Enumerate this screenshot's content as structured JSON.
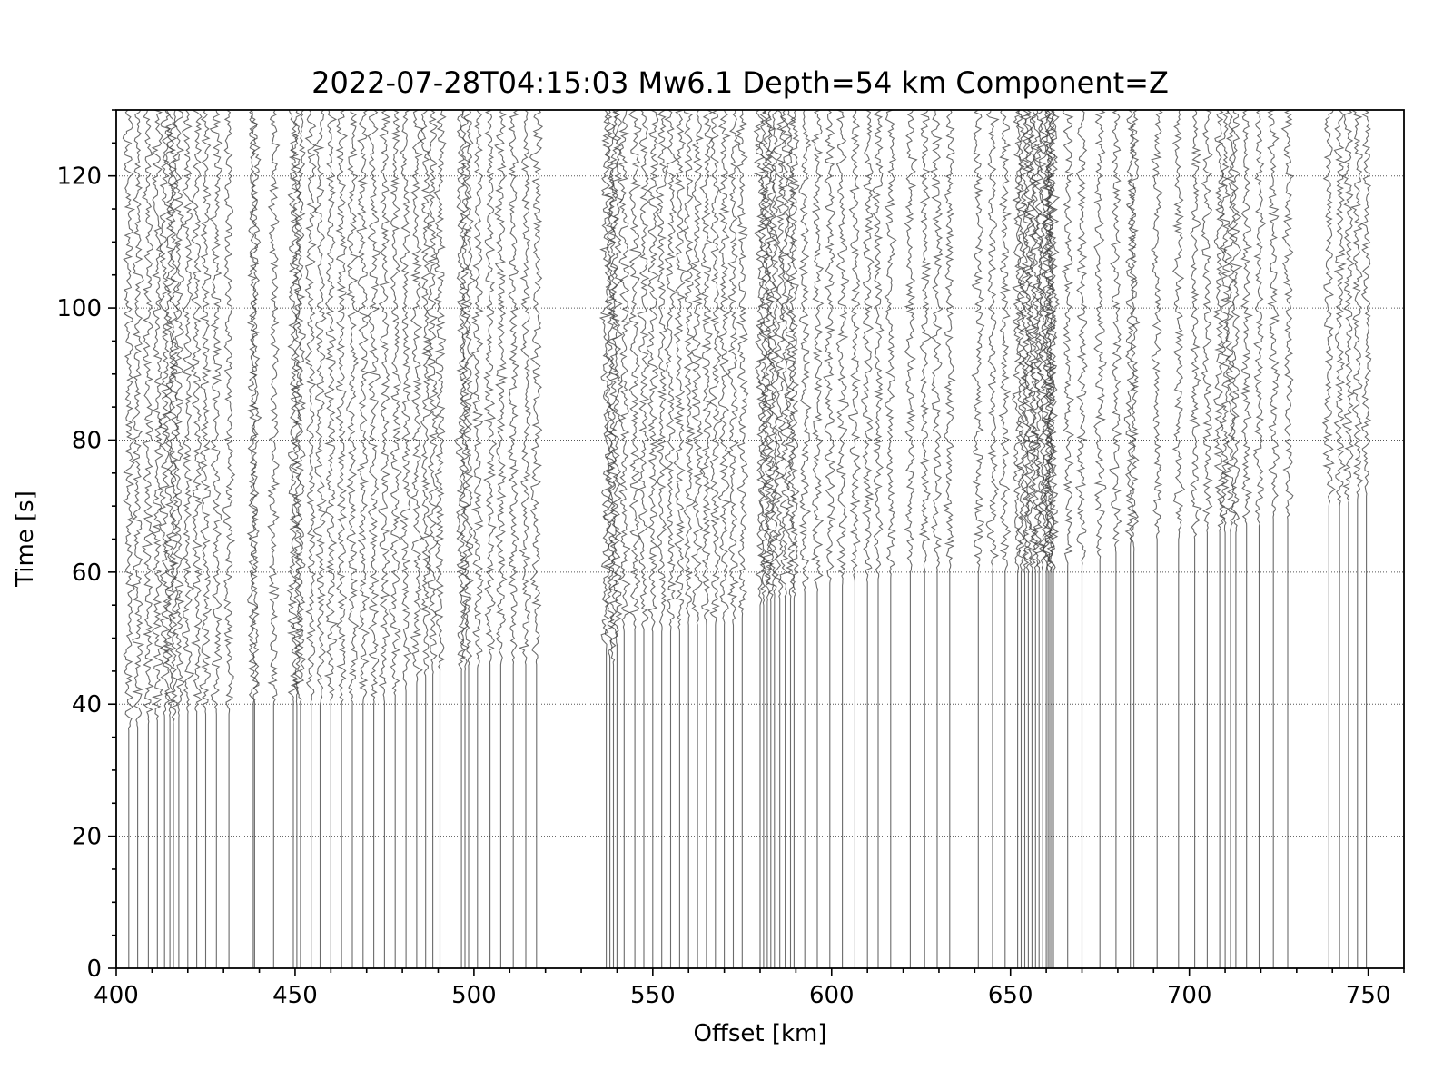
{
  "chart_data": {
    "type": "line",
    "title": "2022-07-28T04:15:03 Mw6.1 Depth=54 km Component=Z",
    "xlabel": "Offset [km]",
    "ylabel": "Time [s]",
    "xlim": [
      400,
      760
    ],
    "ylim": [
      0,
      130
    ],
    "xticks": [
      400,
      450,
      500,
      550,
      600,
      650,
      700,
      750
    ],
    "xtick_labels": [
      "400",
      "450",
      "500",
      "550",
      "600",
      "650",
      "700",
      "750"
    ],
    "yticks": [
      0,
      20,
      40,
      60,
      80,
      100,
      120
    ],
    "ytick_labels": [
      "0",
      "20",
      "40",
      "60",
      "80",
      "100",
      "120"
    ],
    "grid": "horizontal dotted at major y ticks",
    "colors": {
      "trace": "#3a3a3a",
      "grid": "#555555"
    },
    "series": [
      {
        "offsets": [
          403.5,
          406,
          409,
          411.5,
          413.5,
          415,
          416,
          417.5,
          420,
          422.5,
          425,
          428,
          431.5
        ],
        "onsets": [
          36,
          36.5,
          37,
          37.5,
          38,
          38,
          37,
          38,
          38.5,
          38.5,
          38.5,
          38.5,
          38.5
        ]
      },
      {
        "offsets": [
          438.3,
          438.7,
          444,
          449.5,
          450.5,
          451.5,
          454.5,
          457,
          460,
          463,
          466,
          469,
          472,
          475,
          478,
          481,
          484,
          486.5,
          488.5,
          490.5,
          496.5,
          497.5,
          498.5,
          501,
          504.5,
          507.5,
          511,
          514.5,
          517.5
        ],
        "onsets": [
          40,
          40,
          40,
          40,
          40,
          40,
          40,
          40,
          40,
          40,
          40,
          40,
          40,
          40,
          41,
          42,
          43,
          44,
          44.5,
          45,
          45,
          45,
          45.5,
          45.5,
          46,
          46,
          46,
          46,
          46
        ]
      },
      {
        "offsets": [
          537,
          538,
          539,
          540,
          542,
          545,
          547.5,
          550,
          552.5,
          555,
          557.5,
          560,
          562.5,
          565,
          567.5,
          570,
          572.5,
          575,
          580,
          581,
          582,
          583,
          584,
          585.5,
          587,
          588.5,
          589.5,
          592.5,
          596,
          599.5,
          603,
          606.5,
          610,
          613,
          616.5
        ],
        "onsets": [
          48,
          47,
          46,
          49,
          51,
          51,
          51,
          51,
          51,
          51,
          51,
          52,
          52,
          52,
          52,
          52,
          52,
          53,
          55,
          55,
          55.5,
          55.5,
          56,
          56,
          56,
          56,
          56,
          57,
          57,
          58,
          58,
          58.5,
          58.5,
          59,
          59
        ]
      },
      {
        "offsets": [
          622,
          626,
          629.5,
          633,
          641,
          645,
          648.5,
          652,
          653,
          654,
          655,
          656,
          657,
          658,
          659,
          660,
          660.5,
          661,
          661.5,
          662
        ],
        "onsets": [
          60,
          60,
          60,
          60,
          60,
          60,
          60,
          60,
          60,
          60,
          60,
          60,
          60,
          60,
          60,
          60,
          60,
          60,
          60,
          60
        ]
      },
      {
        "offsets": [
          666,
          670,
          675,
          679.5,
          683.5,
          684.5,
          691,
          697,
          701.5,
          705,
          708.5,
          710,
          711.5,
          713,
          716,
          719.5,
          723.5,
          727.5
        ],
        "onsets": [
          61,
          61,
          62,
          63,
          64,
          63,
          65,
          65,
          65,
          66,
          66,
          66,
          66,
          66,
          67,
          67,
          68,
          68
        ]
      },
      {
        "offsets": [
          739,
          742,
          744.5,
          747,
          749.5
        ],
        "onsets": [
          70,
          70,
          70.5,
          71,
          71.5
        ]
      }
    ]
  }
}
